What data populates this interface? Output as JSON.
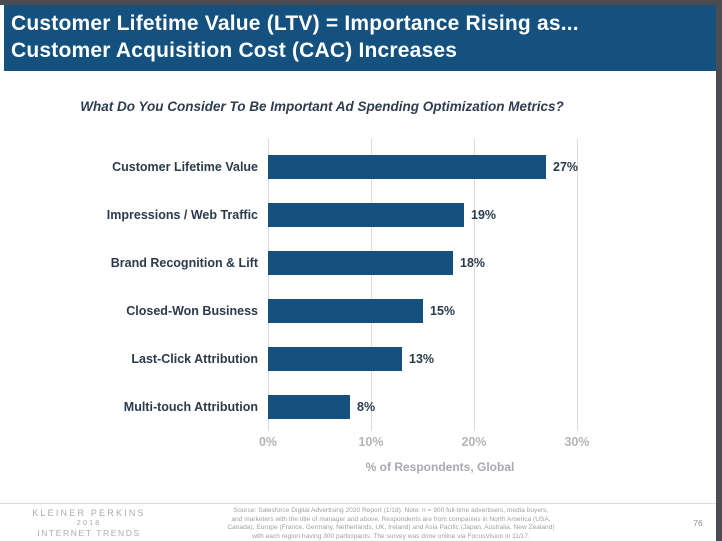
{
  "header": {
    "title_line1": "Customer Lifetime Value (LTV) = Importance Rising as...",
    "title_line2": "Customer Acquisition Cost (CAC) Increases",
    "bg_color": "#15517E",
    "text_color": "#FFFFFF"
  },
  "chart_data": {
    "type": "bar",
    "orientation": "horizontal",
    "title": "What Do You Consider To Be Important Ad Spending Optimization Metrics?",
    "categories": [
      "Customer Lifetime Value",
      "Impressions / Web Traffic",
      "Brand Recognition & Lift",
      "Closed-Won Business",
      "Last-Click Attribution",
      "Multi-touch Attribution"
    ],
    "values": [
      27,
      19,
      18,
      15,
      13,
      8
    ],
    "value_labels": [
      "27%",
      "19%",
      "18%",
      "15%",
      "13%",
      "8%"
    ],
    "xlabel": "% of Respondents, Global",
    "xlim": [
      0,
      30
    ],
    "xticks": [
      0,
      10,
      20,
      30
    ],
    "xtick_labels": [
      "0%",
      "10%",
      "20%",
      "30%"
    ],
    "grid": true,
    "legend": false,
    "bar_color": "#15517E",
    "gridline_color": "#DCDCE0"
  },
  "footer": {
    "logo_line1": "KLEINER PERKINS",
    "logo_line2": "2018",
    "logo_line3": "INTERNET TRENDS",
    "source_lines": [
      "Source: Salesforce Digital Advertising 2020 Report (1/18).  Note: n = 900 full-time advertisers, media buyers,",
      "and marketers with the title of manager and above. Respondents are from companies in North America (USA,",
      "Canada), Europe (France, Germany, Netherlands, UK, Ireland) and Asia Pacific (Japan, Australia, New Zealand)",
      "with each region having 300 participants. The survey was done online via FocusVision in 11/17."
    ],
    "page_number": "76"
  }
}
